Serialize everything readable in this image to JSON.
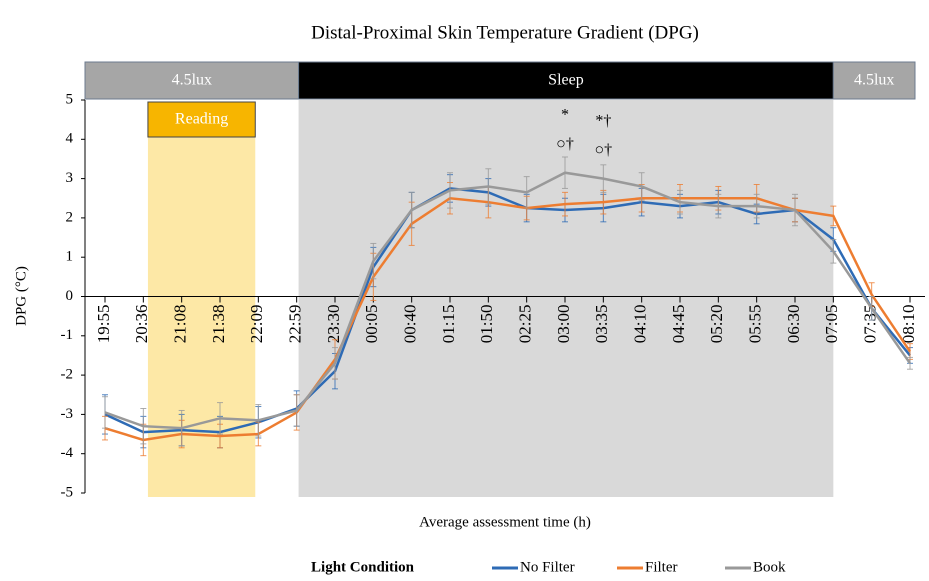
{
  "chart_data": {
    "type": "line",
    "title": "Distal-Proximal Skin Temperature Gradient (DPG)",
    "x_label": "Average assessment time (h)",
    "y_label": "DPG (°C)",
    "categories": [
      "19:55",
      "20:36",
      "21:08",
      "21:38",
      "22:09",
      "22:59",
      "23:30",
      "00:05",
      "00:40",
      "01:15",
      "01:50",
      "02:25",
      "03:00",
      "03:35",
      "04:10",
      "04:45",
      "05:20",
      "05:55",
      "06:30",
      "07:05",
      "07:35",
      "08:10"
    ],
    "series": [
      {
        "name": "No Filter",
        "color": "#2e6bb5",
        "values": [
          -3.0,
          -3.45,
          -3.4,
          -3.45,
          -3.2,
          -2.85,
          -1.9,
          0.75,
          2.2,
          2.75,
          2.65,
          2.25,
          2.2,
          2.25,
          2.4,
          2.3,
          2.4,
          2.1,
          2.2,
          1.45,
          -0.3,
          -1.5
        ],
        "errors": [
          0.5,
          0.4,
          0.4,
          0.4,
          0.4,
          0.45,
          0.45,
          0.5,
          0.45,
          0.35,
          0.35,
          0.35,
          0.3,
          0.35,
          0.35,
          0.3,
          0.3,
          0.25,
          0.3,
          0.3,
          0.3,
          0.2
        ]
      },
      {
        "name": "Filter",
        "color": "#ed7d31",
        "values": [
          -3.35,
          -3.65,
          -3.5,
          -3.55,
          -3.5,
          -2.95,
          -1.6,
          0.5,
          1.85,
          2.5,
          2.4,
          2.25,
          2.35,
          2.4,
          2.5,
          2.5,
          2.5,
          2.5,
          2.2,
          2.05,
          0.05,
          -1.4
        ],
        "errors": [
          0.3,
          0.4,
          0.35,
          0.3,
          0.3,
          0.45,
          0.5,
          0.6,
          0.55,
          0.4,
          0.4,
          0.3,
          0.3,
          0.3,
          0.35,
          0.35,
          0.3,
          0.35,
          0.3,
          0.25,
          0.3,
          0.2
        ]
      },
      {
        "name": "Book",
        "color": "#999999",
        "values": [
          -2.95,
          -3.3,
          -3.35,
          -3.1,
          -3.15,
          -2.9,
          -1.7,
          0.9,
          2.2,
          2.7,
          2.8,
          2.65,
          3.15,
          3.0,
          2.8,
          2.4,
          2.3,
          2.3,
          2.2,
          1.15,
          -0.3,
          -1.7
        ],
        "errors": [
          0.4,
          0.45,
          0.45,
          0.4,
          0.4,
          0.4,
          0.4,
          0.45,
          0.45,
          0.45,
          0.45,
          0.4,
          0.4,
          0.35,
          0.35,
          0.3,
          0.3,
          0.3,
          0.4,
          0.3,
          0.3,
          0.15
        ]
      }
    ],
    "ylim": [
      -5,
      5
    ],
    "yticks": [
      5,
      4,
      3,
      2,
      1,
      0,
      -1,
      -2,
      -3,
      -4,
      -5
    ],
    "bands": [
      {
        "label": "4.5lux"
      },
      {
        "label": "Sleep"
      },
      {
        "label": "4.5lux"
      }
    ],
    "reading": {
      "label": "Reading"
    },
    "annotations": [
      {
        "text": "*"
      },
      {
        "text": "○†"
      },
      {
        "text": "*†"
      },
      {
        "text": "○†"
      }
    ],
    "legend": {
      "title": "Light Condition",
      "position": "bottom"
    }
  }
}
